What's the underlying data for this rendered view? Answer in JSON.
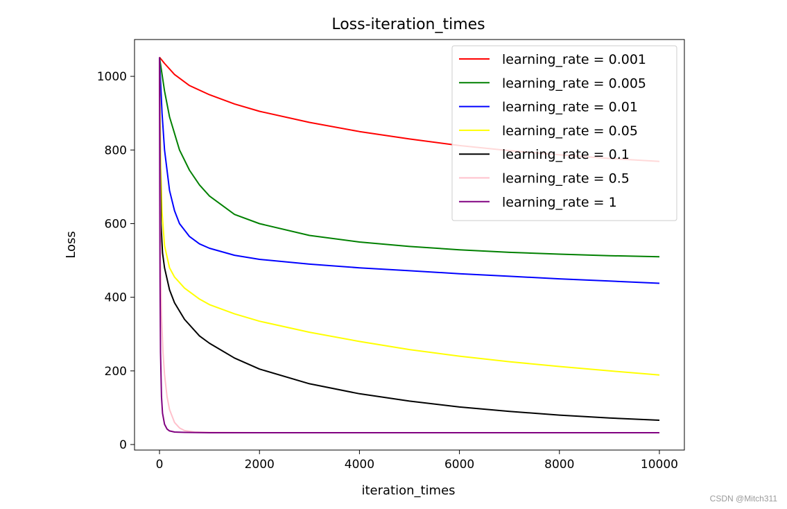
{
  "chart_data": {
    "type": "line",
    "title": "Loss-iteration_times",
    "xlabel": "iteration_times",
    "ylabel": "Loss",
    "xlim": [
      -500,
      10500
    ],
    "ylim": [
      -15,
      1100
    ],
    "xticks": [
      0,
      2000,
      4000,
      6000,
      8000,
      10000
    ],
    "yticks": [
      0,
      200,
      400,
      600,
      800,
      1000
    ],
    "grid": false,
    "legend_position": "top-right",
    "series": [
      {
        "name": "learning_rate = 0.001",
        "color": "#ff0000",
        "x": [
          0,
          100,
          300,
          600,
          1000,
          1500,
          2000,
          3000,
          4000,
          5000,
          6000,
          7000,
          8000,
          9000,
          10000
        ],
        "y": [
          1052,
          1035,
          1005,
          975,
          950,
          925,
          905,
          875,
          850,
          830,
          812,
          798,
          787,
          777,
          769
        ]
      },
      {
        "name": "learning_rate = 0.005",
        "color": "#008000",
        "x": [
          0,
          100,
          200,
          400,
          600,
          800,
          1000,
          1500,
          2000,
          3000,
          4000,
          5000,
          6000,
          7000,
          8000,
          9000,
          10000
        ],
        "y": [
          1052,
          960,
          890,
          800,
          745,
          705,
          675,
          625,
          600,
          568,
          550,
          538,
          529,
          522,
          517,
          513,
          510
        ]
      },
      {
        "name": "learning_rate = 0.01",
        "color": "#0000ff",
        "x": [
          0,
          50,
          100,
          200,
          300,
          400,
          600,
          800,
          1000,
          1500,
          2000,
          3000,
          4000,
          5000,
          6000,
          7000,
          8000,
          9000,
          10000
        ],
        "y": [
          1052,
          900,
          800,
          690,
          635,
          600,
          565,
          545,
          533,
          514,
          503,
          490,
          480,
          472,
          464,
          457,
          450,
          444,
          438
        ]
      },
      {
        "name": "learning_rate = 0.05",
        "color": "#ffff00",
        "x": [
          0,
          25,
          50,
          100,
          200,
          300,
          500,
          800,
          1000,
          1500,
          2000,
          3000,
          4000,
          5000,
          6000,
          7000,
          8000,
          9000,
          10000
        ],
        "y": [
          1052,
          750,
          630,
          540,
          480,
          455,
          425,
          395,
          380,
          355,
          335,
          305,
          280,
          258,
          240,
          225,
          212,
          200,
          189
        ]
      },
      {
        "name": "learning_rate = 0.1",
        "color": "#000000",
        "x": [
          0,
          15,
          30,
          60,
          100,
          200,
          300,
          500,
          800,
          1000,
          1500,
          2000,
          3000,
          4000,
          5000,
          6000,
          7000,
          8000,
          9000,
          10000
        ],
        "y": [
          1052,
          750,
          600,
          520,
          480,
          420,
          385,
          340,
          295,
          275,
          235,
          205,
          165,
          138,
          118,
          102,
          90,
          80,
          72,
          66
        ]
      },
      {
        "name": "learning_rate = 0.5",
        "color": "#ffc0cb",
        "x": [
          0,
          10,
          20,
          40,
          70,
          100,
          150,
          200,
          300,
          400,
          500,
          700,
          1000,
          2000,
          4000,
          6000,
          8000,
          10000
        ],
        "y": [
          1052,
          700,
          500,
          350,
          250,
          190,
          130,
          95,
          60,
          45,
          38,
          34,
          33,
          32,
          32,
          32,
          32,
          32
        ]
      },
      {
        "name": "learning_rate = 1",
        "color": "#800080",
        "x": [
          0,
          5,
          10,
          20,
          40,
          60,
          100,
          150,
          200,
          300,
          500,
          1000,
          2000,
          4000,
          6000,
          8000,
          10000
        ],
        "y": [
          1052,
          700,
          450,
          250,
          130,
          85,
          55,
          42,
          37,
          34,
          33,
          32,
          32,
          32,
          32,
          32,
          32
        ]
      }
    ]
  },
  "watermark": "CSDN @Mitch311"
}
